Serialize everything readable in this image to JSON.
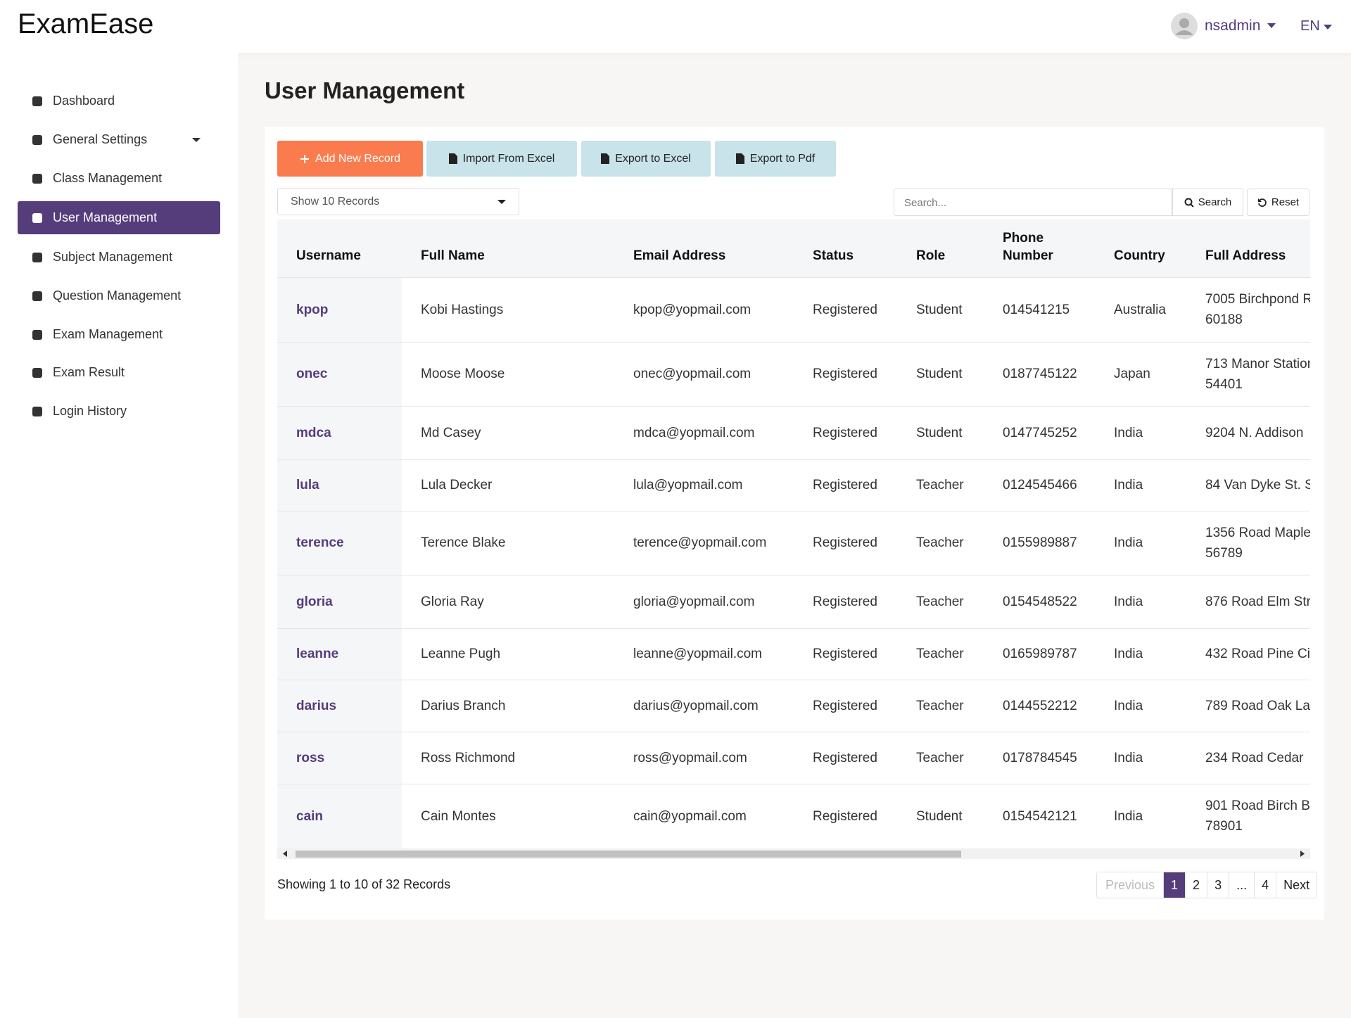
{
  "header": {
    "brand": "ExamEase",
    "user": "nsadmin",
    "lang": "EN"
  },
  "sidebar": {
    "items": [
      "Dashboard",
      "General Settings",
      "Class Management",
      "User Management",
      "Subject Management",
      "Question Management",
      "Exam Management",
      "Exam Result",
      "Login History"
    ]
  },
  "page": {
    "title": "User Management"
  },
  "toolbar": {
    "buttons": [
      "Add New Record",
      "Import From Excel",
      "Export to Excel",
      "Export to Pdf"
    ],
    "show_records": "Show 10 Records"
  },
  "search": {
    "placeholder": "Search...",
    "button": "Search",
    "reset": "Reset"
  },
  "table": {
    "columns": [
      "Username",
      "Full Name",
      "Email Address",
      "Status",
      "Role",
      "Phone\nNumber",
      "Country",
      "Full Address"
    ],
    "rows": [
      [
        "kpop",
        "Kobi Hastings",
        "kpop@yopmail.com",
        "Registered",
        "Student",
        "014541215",
        "Australia",
        "7005 Birchpond R\n60188"
      ],
      [
        "onec",
        "Moose Moose",
        "onec@yopmail.com",
        "Registered",
        "Student",
        "0187745122",
        "Japan",
        "713 Manor Station\n54401"
      ],
      [
        "mdca",
        "Md Casey",
        "mdca@yopmail.com",
        "Registered",
        "Student",
        "0147745252",
        "India",
        "9204 N. Addison"
      ],
      [
        "lula",
        "Lula Decker",
        "lula@yopmail.com",
        "Registered",
        "Teacher",
        "0124545466",
        "India",
        "84 Van Dyke St. S"
      ],
      [
        "terence",
        "Terence Blake",
        "terence@yopmail.com",
        "Registered",
        "Teacher",
        "0155989887",
        "India",
        "1356 Road Maple\n56789"
      ],
      [
        "gloria",
        "Gloria Ray",
        "gloria@yopmail.com",
        "Registered",
        "Teacher",
        "0154548522",
        "India",
        "876 Road Elm Str"
      ],
      [
        "leanne",
        "Leanne Pugh",
        "leanne@yopmail.com",
        "Registered",
        "Teacher",
        "0165989787",
        "India",
        "432 Road Pine Ci"
      ],
      [
        "darius",
        "Darius Branch",
        "darius@yopmail.com",
        "Registered",
        "Teacher",
        "0144552212",
        "India",
        "789 Road Oak La"
      ],
      [
        "ross",
        "Ross Richmond",
        "ross@yopmail.com",
        "Registered",
        "Teacher",
        "0178784545",
        "India",
        "234 Road Cedar"
      ],
      [
        "cain",
        "Cain Montes",
        "cain@yopmail.com",
        "Registered",
        "Student",
        "0154542121",
        "India",
        "901 Road Birch B\n78901"
      ]
    ]
  },
  "footer": {
    "summary": "Showing 1 to 10 of 32 Records"
  },
  "pagination": {
    "previous": "Previous",
    "pages": [
      "1",
      "2",
      "3",
      "...",
      "4"
    ],
    "next": "Next"
  }
}
